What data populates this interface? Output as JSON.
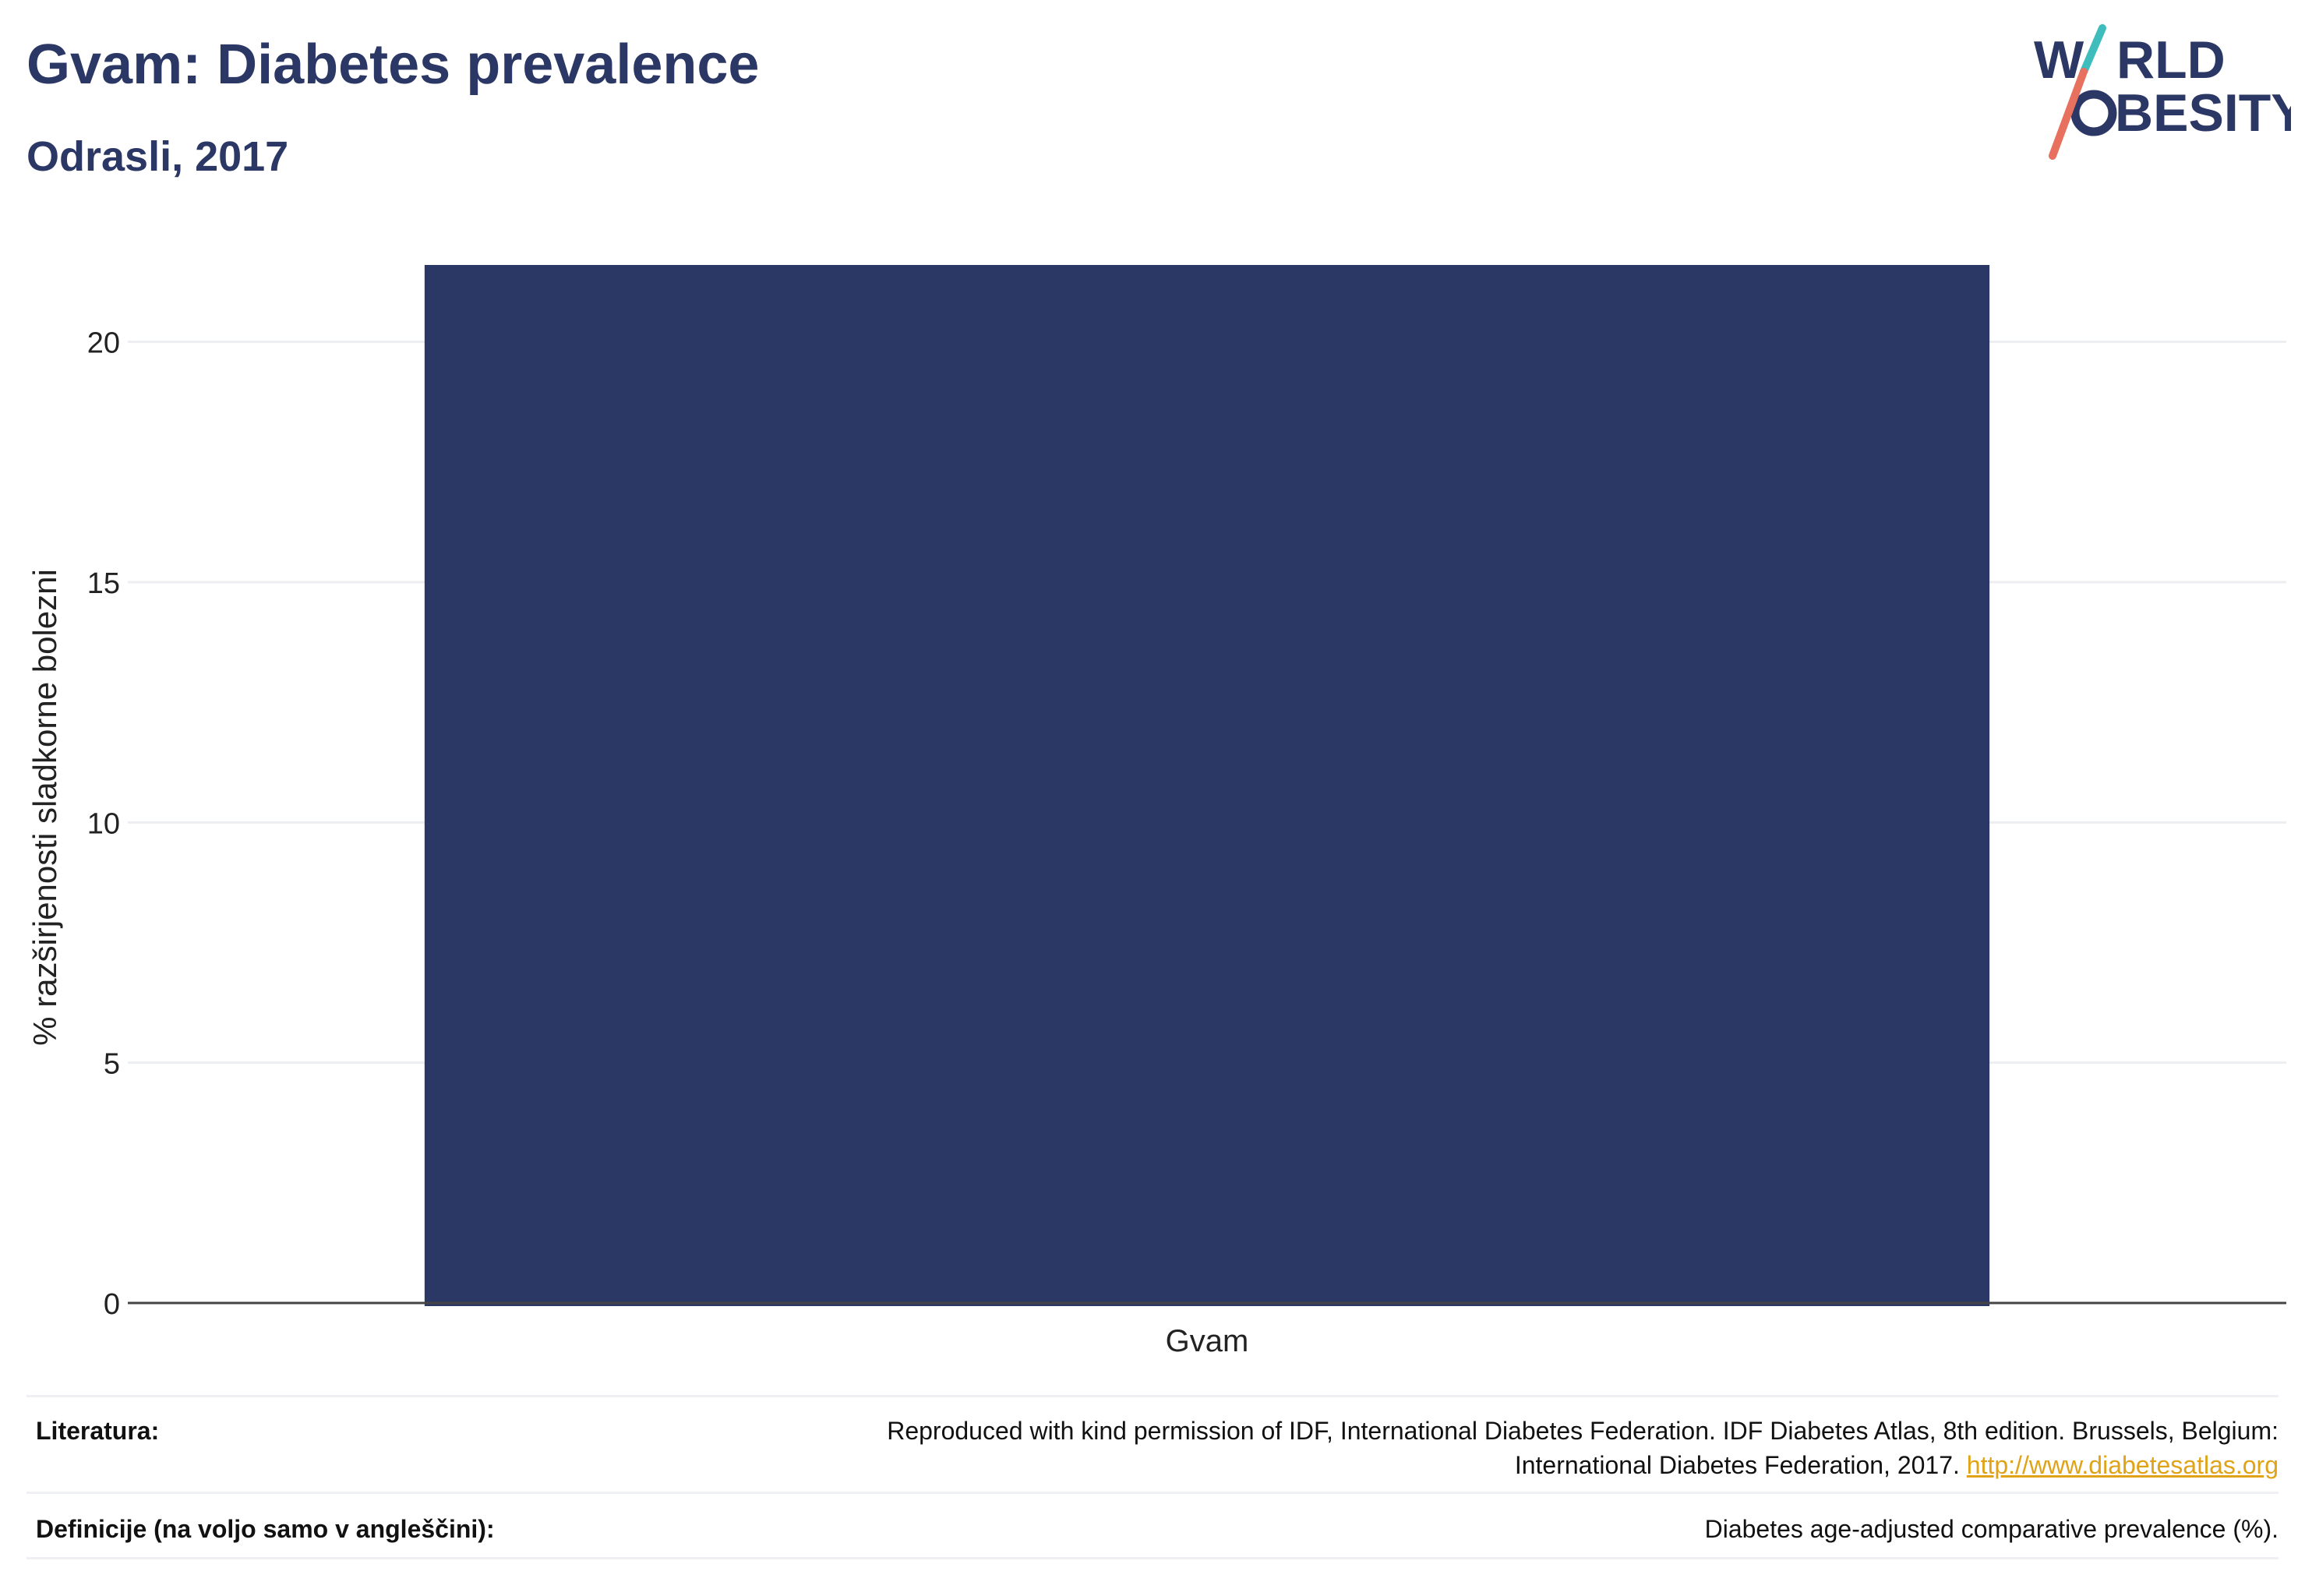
{
  "header": {
    "title": "Gvam: Diabetes prevalence",
    "subtitle": "Odrasli, 2017",
    "logo_top": "W",
    "logo_top_rest": "RLD",
    "logo_bottom_rest": "BESITY"
  },
  "chart_data": {
    "type": "bar",
    "categories": [
      "Gvam"
    ],
    "values": [
      21.6
    ],
    "ylabel": "% razširjenosti sladkorne bolezni",
    "xlabel": "",
    "ylim": [
      0,
      21.6
    ],
    "yticks": [
      0,
      5,
      10,
      15,
      20
    ],
    "grid": true,
    "legend": "none",
    "bar_color": "#2b3764"
  },
  "footer": {
    "sources_label": "Literatura:",
    "sources_text_1": "Reproduced with kind permission of IDF, International Diabetes Federation. IDF Diabetes Atlas, 8th edition. Brussels, Belgium:",
    "sources_text_2": "International Diabetes Federation, 2017.",
    "sources_link": "http://www.diabetesatlas.org",
    "definitions_label": "Definicije (na voljo samo v angleščini):",
    "definitions_text": "Diabetes age-adjusted comparative prevalence (%)."
  },
  "colors": {
    "navy": "#2b3764",
    "teal": "#3fbdbd",
    "coral": "#e8705f",
    "link": "#e0a318"
  }
}
